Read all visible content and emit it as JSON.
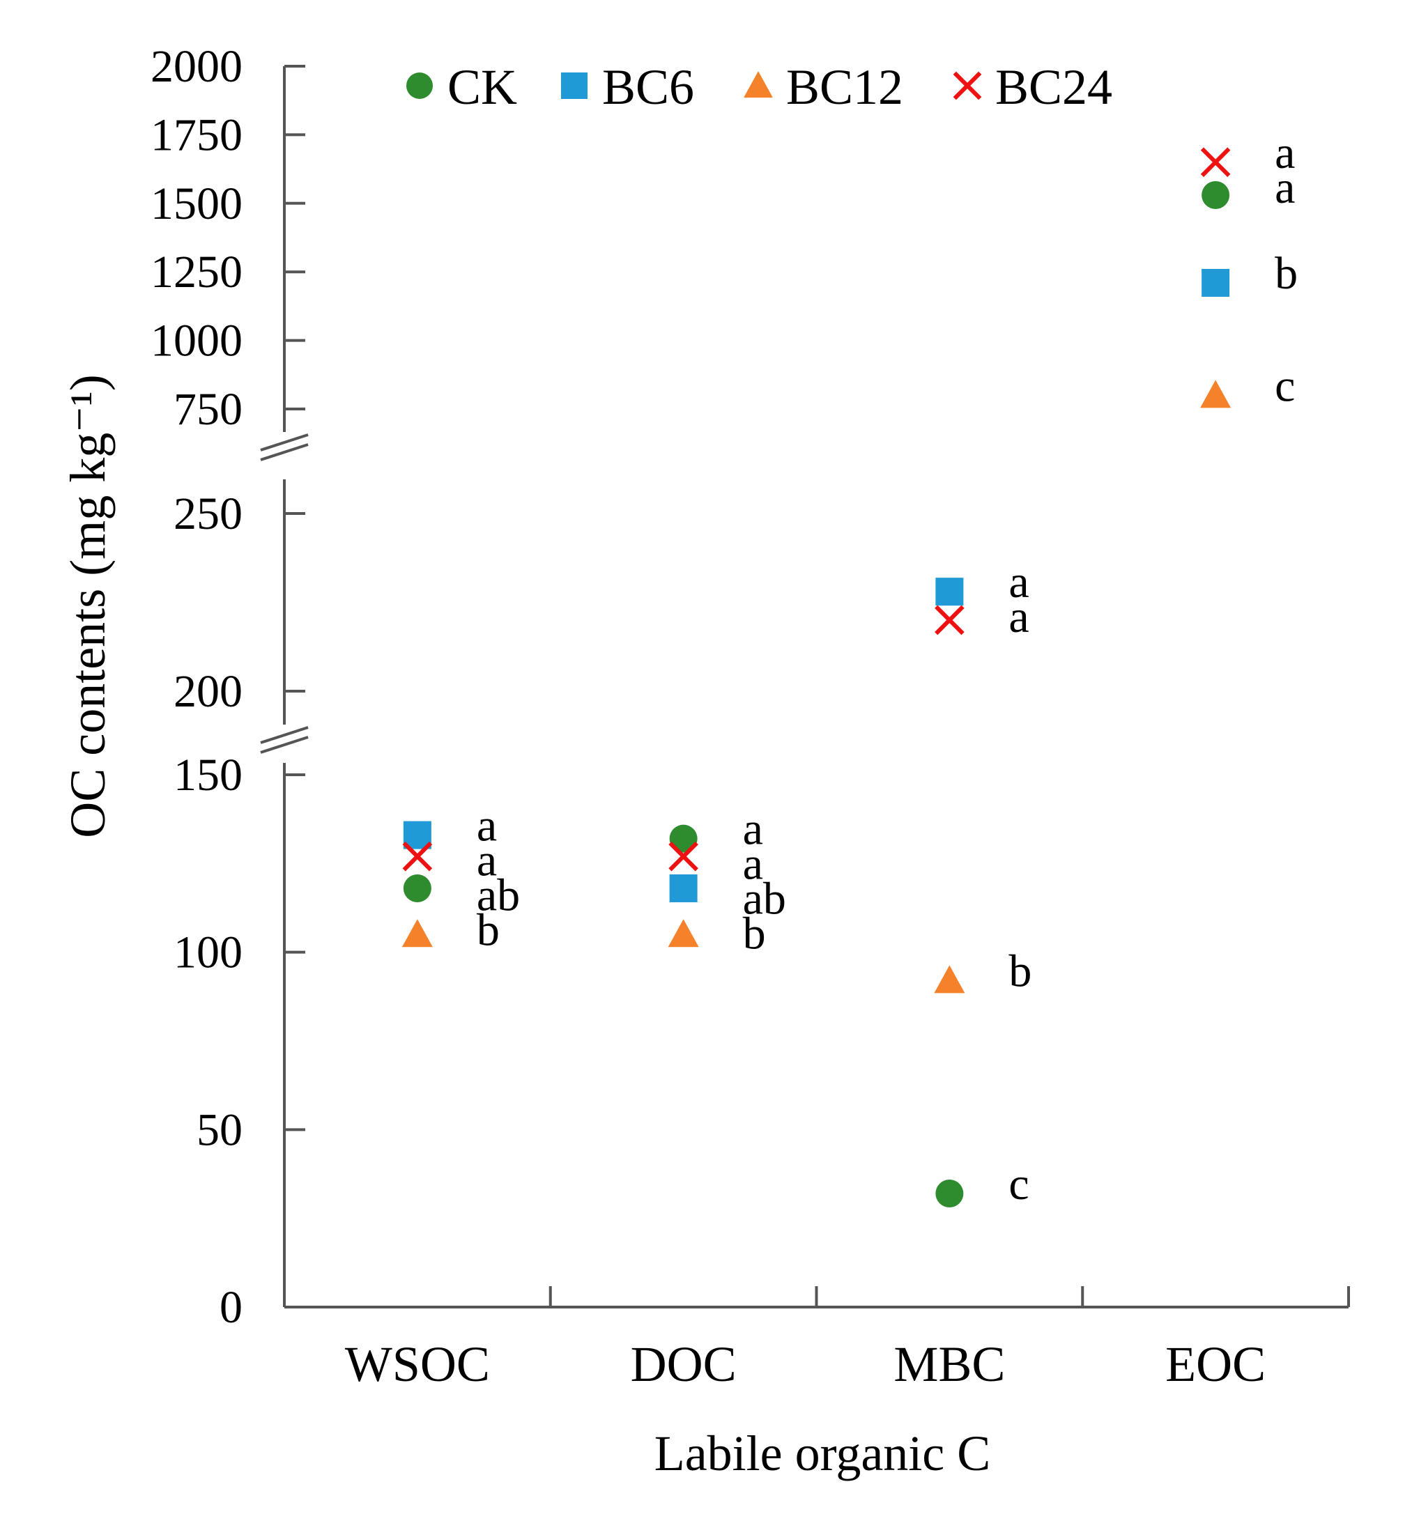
{
  "chart_data": {
    "type": "scatter",
    "title": "",
    "xlabel": "Labile organic C",
    "ylabel": "OC contents (mg kg⁻¹)",
    "categories": [
      "WSOC",
      "DOC",
      "MBC",
      "EOC"
    ],
    "axis_breaks": [
      [
        150,
        200
      ],
      [
        250,
        750
      ]
    ],
    "ylim": [
      0,
      2000
    ],
    "yticks": [
      0,
      50,
      100,
      150,
      200,
      250,
      750,
      1000,
      1250,
      1500,
      1750,
      2000
    ],
    "legend_position": "top",
    "series": [
      {
        "name": "CK",
        "marker": "circle",
        "color": "#2e8b2e",
        "values": [
          118,
          132,
          32,
          1530
        ],
        "letters": [
          "ab",
          "a",
          "c",
          "a"
        ]
      },
      {
        "name": "BC6",
        "marker": "square",
        "color": "#1f9ad6",
        "values": [
          133,
          118,
          228,
          1210
        ],
        "letters": [
          "a",
          "ab",
          "a",
          "b"
        ]
      },
      {
        "name": "BC12",
        "marker": "triangle",
        "color": "#f5822a",
        "values": [
          105,
          105,
          92,
          800
        ],
        "letters": [
          "b",
          "b",
          "b",
          "c"
        ]
      },
      {
        "name": "BC24",
        "marker": "cross",
        "color": "#ee1111",
        "values": [
          127,
          127,
          220,
          1650
        ],
        "letters": [
          "a",
          "a",
          "a",
          "a"
        ]
      }
    ]
  }
}
